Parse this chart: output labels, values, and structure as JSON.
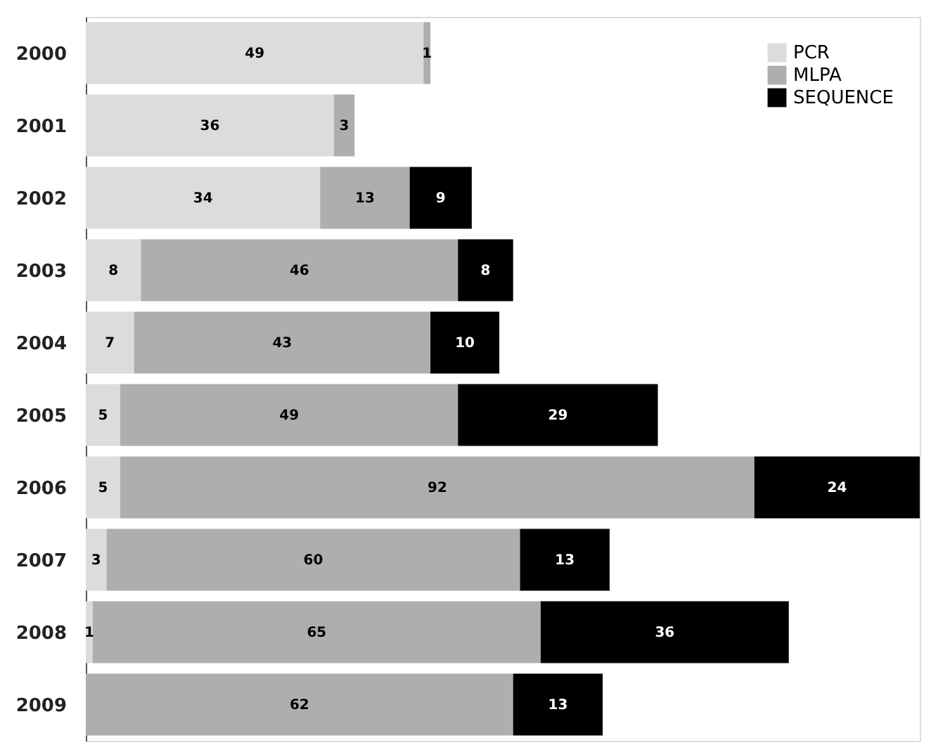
{
  "chart_data": {
    "type": "bar",
    "orientation": "horizontal",
    "stacked": true,
    "data_labels": true,
    "legend": "top right",
    "categories": [
      "2000",
      "2001",
      "2002",
      "2003",
      "2004",
      "2005",
      "2006",
      "2007",
      "2008",
      "2009"
    ],
    "series": [
      {
        "name": "PCR",
        "color": "#dcdcdc",
        "values": [
          49,
          36,
          34,
          8,
          7,
          5,
          5,
          3,
          1,
          null
        ]
      },
      {
        "name": "MLPA",
        "color": "#aeaeae",
        "values": [
          1,
          3,
          13,
          46,
          43,
          49,
          92,
          60,
          65,
          62
        ]
      },
      {
        "name": "SEQUENCE",
        "color": "#000000",
        "values": [
          null,
          null,
          9,
          8,
          10,
          29,
          24,
          13,
          36,
          13
        ]
      }
    ]
  }
}
